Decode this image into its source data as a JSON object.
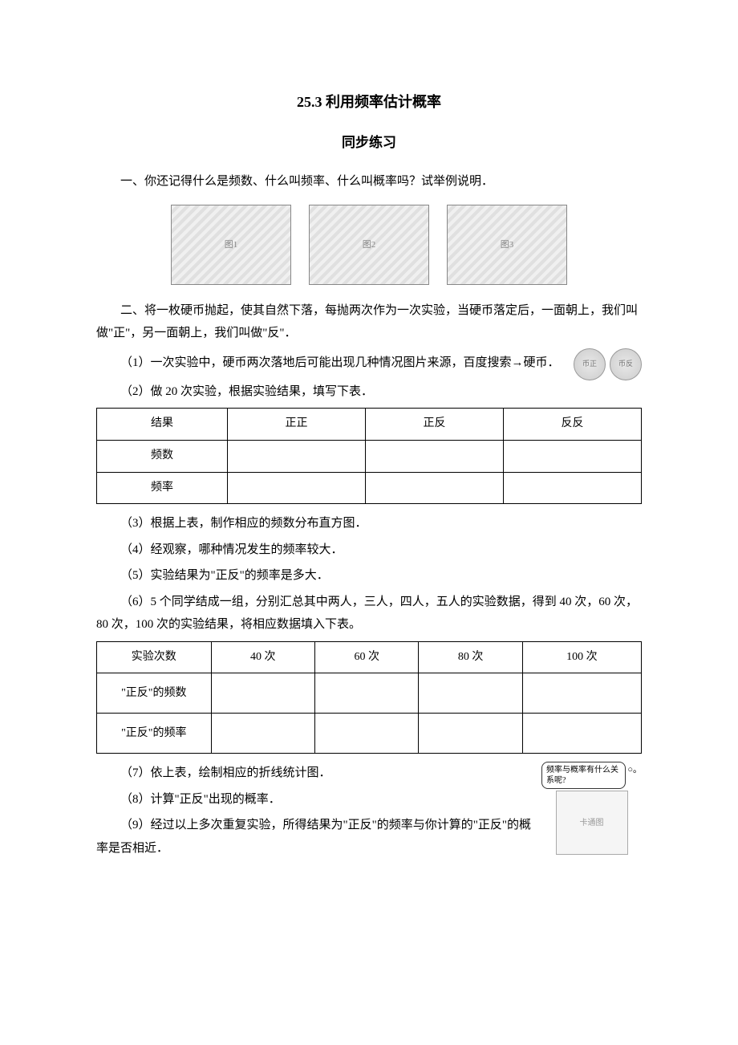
{
  "title": "25.3 利用频率估计概率",
  "subtitle": "同步练习",
  "section1": "一、你还记得什么是频数、什么叫频率、什么叫概率吗？试举例说明．",
  "images": {
    "img1_alt": "图1",
    "img2_alt": "图2",
    "img3_alt": "图3"
  },
  "section2_intro": "二、将一枚硬币抛起，使其自然下落，每抛两次作为一次实验，当硬币落定后，一面朝上，我们叫做\"正\"，另一面朝上，我们叫做\"反\"．",
  "q1_part1": "（1）一次实验中，硬币两次落地后可能出现几种情况图片来源，百度搜索→硬币．",
  "coin_alt1": "币正",
  "coin_alt2": "币反",
  "q2": "（2）做 20 次实验，根据实验结果，填写下表．",
  "table1": {
    "headers": [
      "结果",
      "正正",
      "正反",
      "反反"
    ],
    "rows": [
      [
        "频数",
        "",
        "",
        ""
      ],
      [
        "频率",
        "",
        "",
        ""
      ]
    ]
  },
  "q3": "（3）根据上表，制作相应的频数分布直方图．",
  "q4": "（4）经观察，哪种情况发生的频率较大．",
  "q5": "（5）实验结果为\"正反\"的频率是多大．",
  "q6": "（6）5 个同学结成一组，分别汇总其中两人，三人，四人，五人的实验数据，得到 40 次，60 次，80 次，100 次的实验结果，将相应数据填入下表。",
  "table2": {
    "headers": [
      "实验次数",
      "40 次",
      "60 次",
      "80 次",
      "100 次"
    ],
    "rows": [
      [
        "\"正反\"的频数",
        "",
        "",
        "",
        ""
      ],
      [
        "\"正反\"的频率",
        "",
        "",
        "",
        ""
      ]
    ]
  },
  "q7": "（7）依上表，绘制相应的折线统计图．",
  "q8": "（8）计算\"正反\"出现的概率．",
  "q9": "（9）经过以上多次重复实验，所得结果为\"正反\"的频率与你计算的\"正反\"的概率是否相近．",
  "bubble_text": "频率与概率有什么关系呢?",
  "bubble_sym": "○。",
  "cartoon_alt": "卡通图"
}
